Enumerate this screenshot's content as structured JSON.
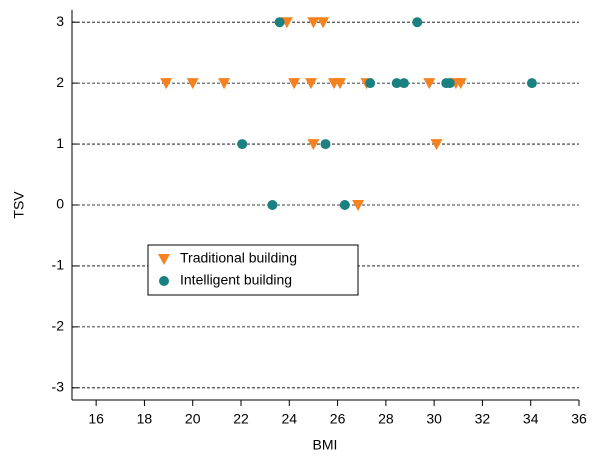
{
  "chart_data": {
    "type": "scatter",
    "xlabel": "BMI",
    "ylabel": "TSV",
    "xlim": [
      15,
      36
    ],
    "xticks": [
      16,
      18,
      20,
      22,
      24,
      26,
      28,
      30,
      32,
      34,
      36
    ],
    "ylim": [
      -3.2,
      3.2
    ],
    "yticks": [
      -3,
      -2,
      -1,
      0,
      1,
      2,
      3
    ],
    "grid": true,
    "legend": "center left",
    "series": [
      {
        "name": "Traditional building",
        "color": "#f5821f",
        "marker": "triangle-down",
        "x": [
          23.9,
          25.0,
          25.4,
          18.9,
          20.0,
          21.3,
          24.2,
          24.9,
          25.85,
          26.1,
          27.2,
          29.8,
          30.9,
          31.1,
          25.0,
          30.1,
          26.85
        ],
        "values": [
          3,
          3,
          3,
          2,
          2,
          2,
          2,
          2,
          2,
          2,
          2,
          2,
          2,
          2,
          1,
          1,
          0
        ]
      },
      {
        "name": "Intelligent building",
        "color": "#1a8080",
        "marker": "circle",
        "x": [
          23.6,
          29.3,
          27.35,
          28.45,
          28.75,
          30.5,
          30.65,
          34.05,
          22.05,
          25.5,
          23.3,
          26.3
        ],
        "values": [
          3,
          3,
          2,
          2,
          2,
          2,
          2,
          2,
          1,
          1,
          0,
          0
        ]
      }
    ]
  }
}
